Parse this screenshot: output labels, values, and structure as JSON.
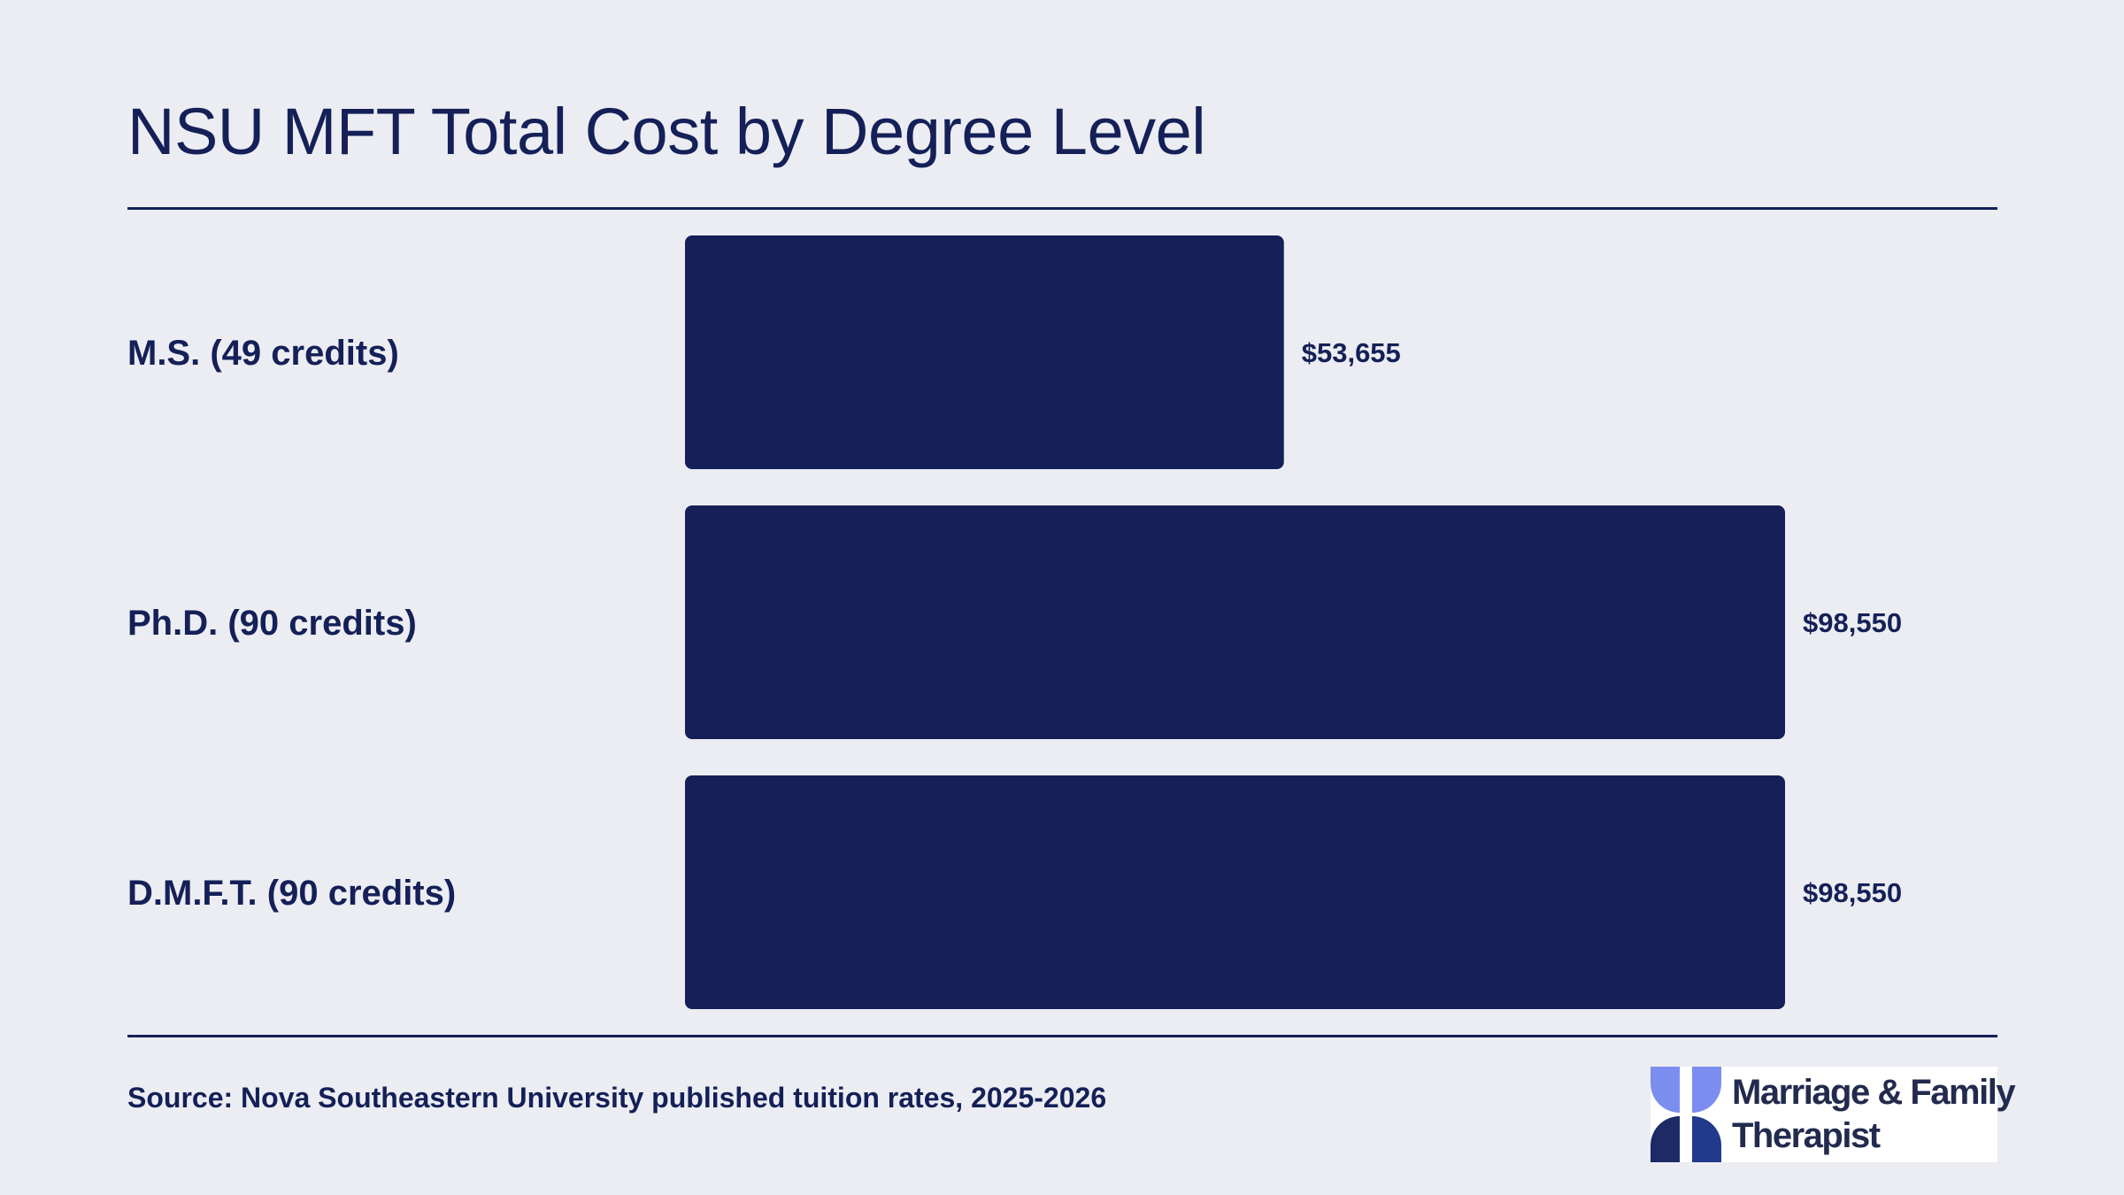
{
  "title": "NSU MFT Total Cost by Degree Level",
  "chart_data": {
    "type": "bar",
    "orientation": "horizontal",
    "categories": [
      "M.S. (49 credits)",
      "Ph.D. (90 credits)",
      "D.M.F.T. (90 credits)"
    ],
    "values": [
      53655,
      98550,
      98550
    ],
    "value_labels": [
      "$53,655",
      "$98,550",
      "$98,550"
    ],
    "bar_color": "#142057",
    "grid": false
  },
  "source": "Source: Nova Southeastern University published tuition rates, 2025-2026",
  "logo": {
    "line1": "Marriage & Family",
    "line2": "Therapist"
  },
  "colors": {
    "background": "#ECEDF3",
    "accent": "#142057",
    "logo_light": "#7C8DF0",
    "logo_dark": "#223A8C"
  }
}
